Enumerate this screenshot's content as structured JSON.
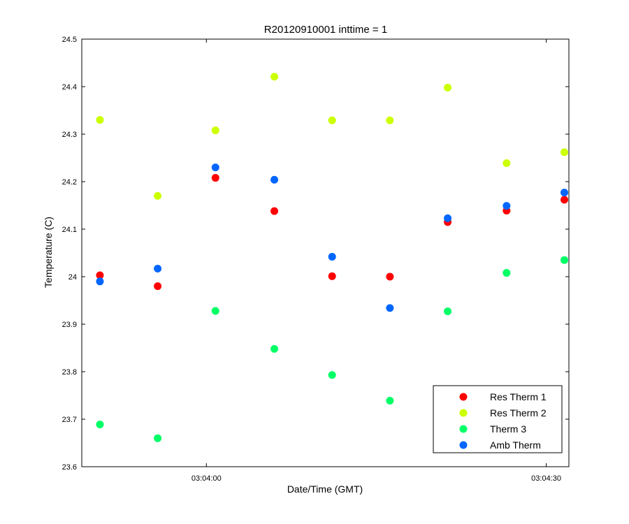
{
  "chart_data": {
    "type": "scatter",
    "title": "R20120910001 inttime = 1",
    "xlabel": "Date/Time (GMT)",
    "ylabel": "Temperature (C)",
    "x_tick_labels": [
      "03:04:00",
      "03:04:30"
    ],
    "x_ticks": [
      "03:04:00",
      "03:04:30"
    ],
    "xlim": [
      "03:03:49",
      "03:04:32"
    ],
    "ylim": [
      23.6,
      24.5
    ],
    "y_ticks": [
      23.6,
      23.7,
      23.8,
      23.9,
      24,
      24.1,
      24.2,
      24.3,
      24.4,
      24.5
    ],
    "y_tick_labels": [
      "23.6",
      "23.7",
      "23.8",
      "23.9",
      "24",
      "24.1",
      "24.2",
      "24.3",
      "24.4",
      "24.5"
    ],
    "grid": false,
    "legend_position": "bottom-right",
    "x": [
      "03:03:50.6",
      "03:03:55.7",
      "03:04:00.8",
      "03:04:06.0",
      "03:04:11.1",
      "03:04:16.2",
      "03:04:21.3",
      "03:04:26.5",
      "03:04:31.6"
    ],
    "series": [
      {
        "name": "Res Therm 1",
        "color": "#ff0000",
        "values": [
          24.003,
          23.98,
          24.208,
          24.138,
          24.001,
          24.0,
          24.115,
          24.139,
          24.162
        ]
      },
      {
        "name": "Res Therm 2",
        "color": "#ccff00",
        "values": [
          24.33,
          24.17,
          24.308,
          24.421,
          24.329,
          24.329,
          24.398,
          24.239,
          24.262
        ]
      },
      {
        "name": "Therm 3",
        "color": "#00ff66",
        "values": [
          23.689,
          23.66,
          23.928,
          23.848,
          23.793,
          23.739,
          23.927,
          24.008,
          24.035
        ]
      },
      {
        "name": "Amb Therm",
        "color": "#0066ff",
        "values": [
          23.99,
          24.017,
          24.23,
          24.204,
          24.042,
          23.934,
          24.123,
          24.149,
          24.177
        ]
      }
    ]
  }
}
